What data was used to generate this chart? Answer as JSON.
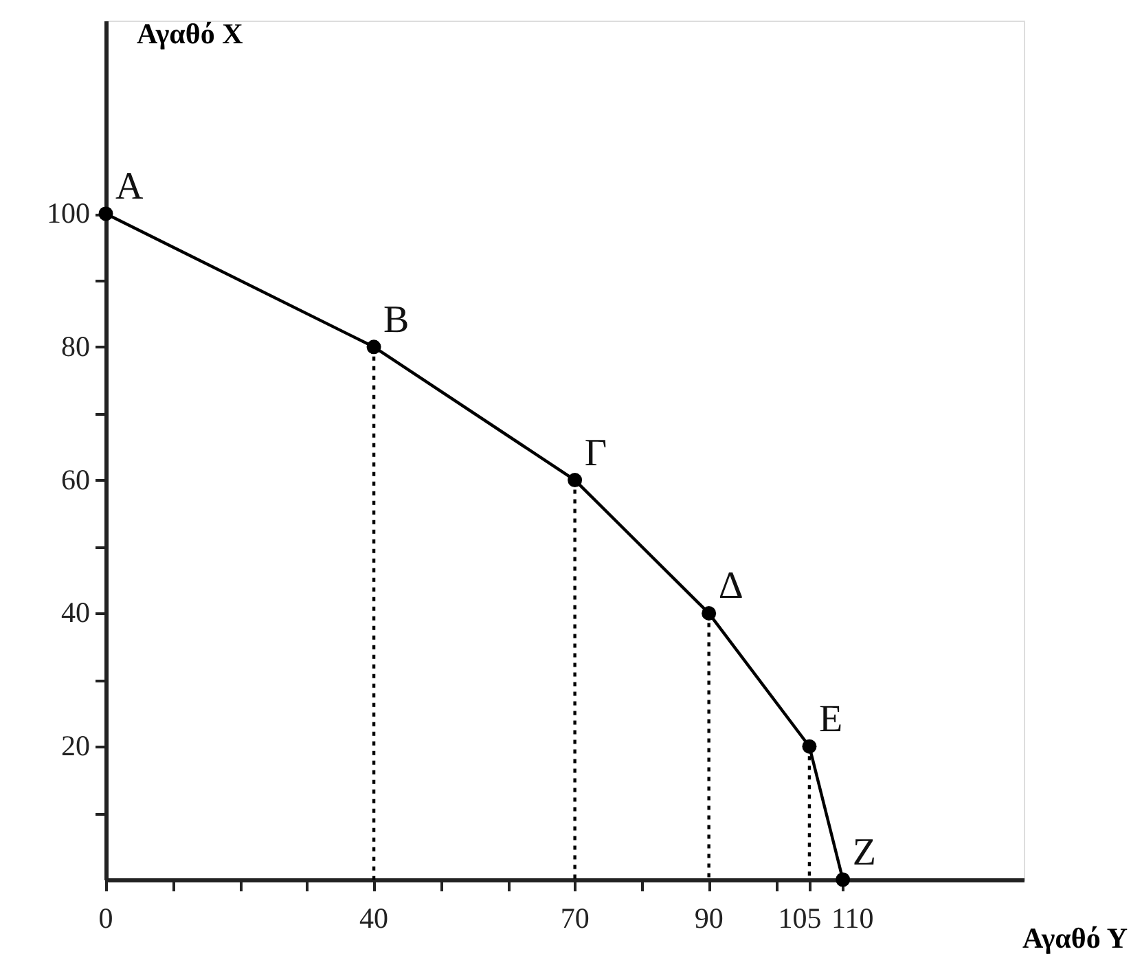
{
  "chart_data": {
    "type": "line",
    "xlabel": "Αγαθό Υ",
    "ylabel": "Αγαθό Χ",
    "xlim": [
      0,
      137
    ],
    "ylim": [
      0,
      129
    ],
    "xticks": [
      0,
      {
        "value": 10,
        "label": null
      },
      {
        "value": 20,
        "label": null
      },
      {
        "value": 30,
        "label": null
      },
      40,
      {
        "value": 50,
        "label": null
      },
      {
        "value": 60,
        "label": null
      },
      70,
      {
        "value": 80,
        "label": null
      },
      90,
      {
        "value": 100,
        "label": null
      },
      105,
      110
    ],
    "yticks": [
      {
        "value": 10,
        "label": null
      },
      20,
      {
        "value": 30,
        "label": null
      },
      40,
      {
        "value": 50,
        "label": null
      },
      60,
      {
        "value": 70,
        "label": null
      },
      80,
      {
        "value": 90,
        "label": null
      },
      100
    ],
    "grid": false,
    "series": [
      {
        "color": "#000000",
        "x": [
          0,
          40,
          70,
          90,
          105,
          110
        ],
        "values": [
          100,
          80,
          60,
          40,
          20,
          0
        ],
        "marker": "circle",
        "line_style": "solid"
      },
      {
        "color": "#000000",
        "x": [
          40,
          40
        ],
        "values": [
          80,
          0
        ],
        "marker": "none",
        "line_style": "dotted"
      },
      {
        "color": "#000000",
        "x": [
          70,
          70
        ],
        "values": [
          60,
          0
        ],
        "marker": "none",
        "line_style": "dotted"
      },
      {
        "color": "#000000",
        "x": [
          90,
          90
        ],
        "values": [
          40,
          0
        ],
        "marker": "none",
        "line_style": "dotted"
      },
      {
        "color": "#000000",
        "x": [
          105,
          105
        ],
        "values": [
          20,
          0
        ],
        "marker": "none",
        "line_style": "dotted"
      }
    ],
    "annotations": [
      {
        "text": "A",
        "x": 0,
        "y": 100
      },
      {
        "text": "B",
        "x": 40,
        "y": 80
      },
      {
        "text": "Γ",
        "x": 70,
        "y": 60
      },
      {
        "text": "Δ",
        "x": 90,
        "y": 40
      },
      {
        "text": "E",
        "x": 105,
        "y": 20
      },
      {
        "text": "Z",
        "x": 110,
        "y": 0
      }
    ]
  }
}
